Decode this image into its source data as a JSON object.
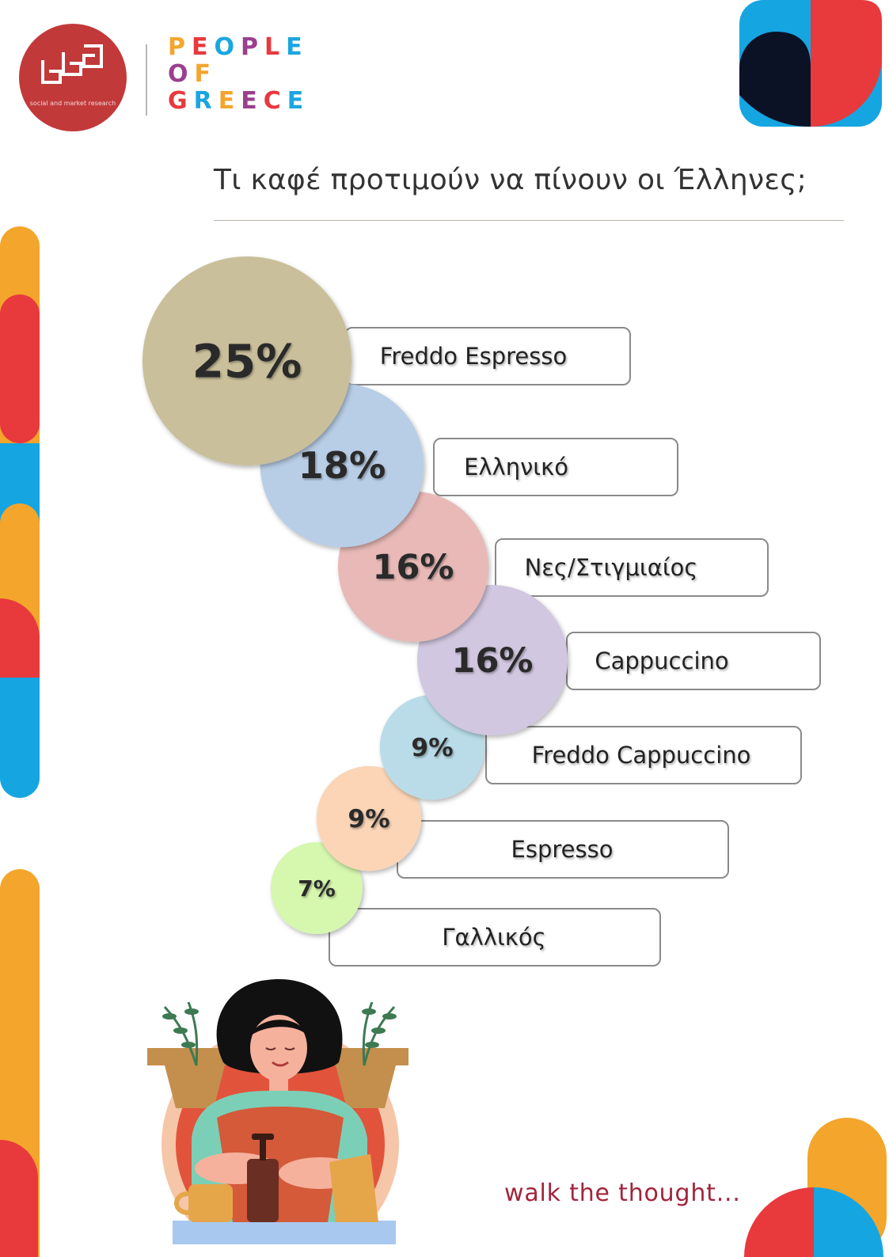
{
  "logo": {
    "tagline": "social and market research",
    "brand_lines": [
      {
        "text": "PEOPLE",
        "letters": [
          "#f4a52c",
          "#e8393d",
          "#1aa6e0",
          "#9b3f8f",
          "#e8393d",
          "#1aa6e0"
        ]
      },
      {
        "text": "OF",
        "letters": [
          "#9b3f8f",
          "#f4a52c"
        ]
      },
      {
        "text": "GREECE",
        "letters": [
          "#e8393d",
          "#1aa6e0",
          "#f4a52c",
          "#9b3f8f",
          "#e8393d",
          "#1aa6e0"
        ]
      }
    ]
  },
  "headline": "Τι καφέ προτιμούν να πίνουν οι Έλληνες;",
  "chart_data": {
    "type": "bubble",
    "title": "Τι καφέ προτιμούν να πίνουν οι Έλληνες;",
    "categories": [
      "Freddo Espresso",
      "Ελληνικό",
      "Νες/Στιγμιαίος",
      "Cappuccino",
      "Freddo Cappuccino",
      "Espresso",
      "Γαλλικός"
    ],
    "values": [
      25,
      18,
      16,
      16,
      9,
      9,
      7
    ],
    "value_labels": [
      "25%",
      "18%",
      "16%",
      "16%",
      "9%",
      "9%",
      "7%"
    ],
    "unit": "%",
    "colors": [
      "#c9bf9a",
      "#b8cde6",
      "#e8b9b7",
      "#d1c7e0",
      "#b9dce8",
      "#fbd5b6",
      "#d6f7ae"
    ]
  },
  "footer": {
    "slogan": "walk the thought..."
  },
  "palette": {
    "orange": "#f4a52c",
    "red": "#e8393d",
    "blue": "#15a5e1",
    "navy": "#0b1226"
  }
}
